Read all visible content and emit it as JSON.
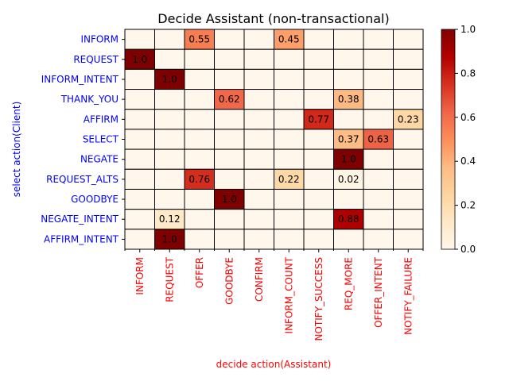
{
  "chart_data": {
    "type": "heatmap",
    "title": "Decide Assistant (non-transactional)",
    "xlabel": "decide action(Assistant)",
    "ylabel": "select action(Client)",
    "x_categories": [
      "INFORM",
      "REQUEST",
      "OFFER",
      "GOODBYE",
      "CONFIRM",
      "INFORM_COUNT",
      "NOTIFY_SUCCESS",
      "REQ_MORE",
      "OFFER_INTENT",
      "NOTIFY_FAILURE"
    ],
    "y_categories": [
      "INFORM",
      "REQUEST",
      "INFORM_INTENT",
      "THANK_YOU",
      "AFFIRM",
      "SELECT",
      "NEGATE",
      "REQUEST_ALTS",
      "GOODBYE",
      "NEGATE_INTENT",
      "AFFIRM_INTENT"
    ],
    "values": [
      [
        0,
        0,
        0.55,
        0,
        0,
        0.45,
        0,
        0,
        0,
        0
      ],
      [
        1.0,
        0,
        0,
        0,
        0,
        0,
        0,
        0,
        0,
        0
      ],
      [
        0,
        1.0,
        0,
        0,
        0,
        0,
        0,
        0,
        0,
        0
      ],
      [
        0,
        0,
        0,
        0.62,
        0,
        0,
        0,
        0.38,
        0,
        0
      ],
      [
        0,
        0,
        0,
        0,
        0,
        0,
        0.77,
        0,
        0,
        0.23
      ],
      [
        0,
        0,
        0,
        0,
        0,
        0,
        0,
        0.37,
        0.63,
        0
      ],
      [
        0,
        0,
        0,
        0,
        0,
        0,
        0,
        1.0,
        0,
        0
      ],
      [
        0,
        0,
        0.76,
        0,
        0,
        0.22,
        0,
        0.02,
        0,
        0
      ],
      [
        0,
        0,
        0,
        1.0,
        0,
        0,
        0,
        0,
        0,
        0
      ],
      [
        0,
        0.12,
        0,
        0,
        0,
        0,
        0,
        0.88,
        0,
        0
      ],
      [
        0,
        1.0,
        0,
        0,
        0,
        0,
        0,
        0,
        0,
        0
      ]
    ],
    "cell_labels": [
      [
        "",
        "",
        "0.55",
        "",
        "",
        "0.45",
        "",
        "",
        "",
        ""
      ],
      [
        "1.0",
        "",
        "",
        "",
        "",
        "",
        "",
        "",
        "",
        ""
      ],
      [
        "",
        "1.0",
        "",
        "",
        "",
        "",
        "",
        "",
        "",
        ""
      ],
      [
        "",
        "",
        "",
        "0.62",
        "",
        "",
        "",
        "0.38",
        "",
        ""
      ],
      [
        "",
        "",
        "",
        "",
        "",
        "",
        "0.77",
        "",
        "",
        "0.23"
      ],
      [
        "",
        "",
        "",
        "",
        "",
        "",
        "",
        "0.37",
        "0.63",
        ""
      ],
      [
        "",
        "",
        "",
        "",
        "",
        "",
        "",
        "1.0",
        "",
        ""
      ],
      [
        "",
        "",
        "0.76",
        "",
        "",
        "0.22",
        "",
        "0.02",
        "",
        ""
      ],
      [
        "",
        "",
        "",
        "1.0",
        "",
        "",
        "",
        "",
        "",
        ""
      ],
      [
        "",
        "0.12",
        "",
        "",
        "",
        "",
        "",
        "0.88",
        "",
        ""
      ],
      [
        "",
        "1.0",
        "",
        "",
        "",
        "",
        "",
        "",
        "",
        ""
      ]
    ],
    "colorscale": "OrRd",
    "vmin": 0,
    "vmax": 1.0,
    "colorbar_ticks": [
      "0.0",
      "0.2",
      "0.4",
      "0.6",
      "0.8",
      "1.0"
    ],
    "colorbar_tick_values": [
      0,
      0.2,
      0.4,
      0.6,
      0.8,
      1.0
    ],
    "x_label_color": "#ff0000",
    "y_label_color": "#0000ff"
  }
}
